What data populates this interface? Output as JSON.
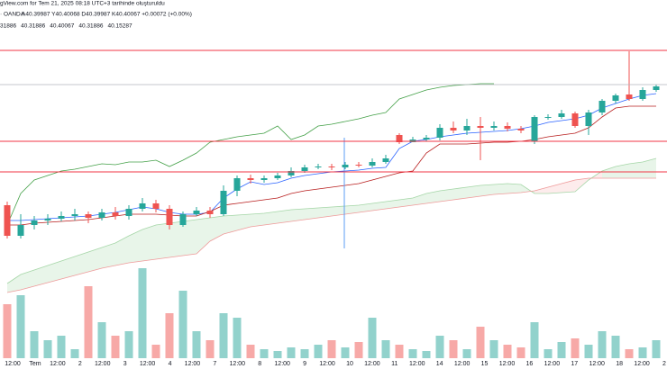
{
  "chart_data": {
    "type": "candlestick",
    "header": "gView.com for Tem 21, 2025 08:18 UTC+3 tarihinde oluşturuldu",
    "symbol": "· OANDA",
    "ohlc_text": "A40.39987 Y40.40068 D40.39987 K40.40067 +0.00072 (+0.00%)",
    "indicator_values": [
      {
        "label": "31886",
        "color": "#2962ff"
      },
      {
        "label": "40.31886",
        "color": "#f23645"
      },
      {
        "label": "40.40067",
        "color": "#43a047"
      },
      {
        "label": "40.31886",
        "color": "#a5d6a7"
      },
      {
        "label": "40.15287",
        "color": "#ef9a9a"
      }
    ],
    "ylim": [
      40.164,
      40.494
    ],
    "up_color": "#26a69a",
    "down_color": "#ef5350",
    "open": [
      40.266,
      40.232,
      40.244,
      40.249,
      40.251,
      40.254,
      40.256,
      40.252,
      40.258,
      40.254,
      40.262,
      40.268,
      40.262,
      40.244,
      40.256,
      40.26,
      40.256,
      40.282,
      40.296,
      40.294,
      40.296,
      40.299,
      40.304,
      40.308,
      40.309,
      40.308,
      40.311,
      40.31,
      40.314,
      40.344,
      40.336,
      40.339,
      40.341,
      40.352,
      40.349,
      40.354,
      40.352,
      40.354,
      40.351,
      40.337,
      40.364,
      40.364,
      40.368,
      40.354,
      40.369,
      40.382,
      40.389,
      40.384,
      40.394
    ],
    "high": [
      40.27,
      40.256,
      40.254,
      40.256,
      40.259,
      40.262,
      40.259,
      40.262,
      40.264,
      40.266,
      40.274,
      40.272,
      40.266,
      40.259,
      40.264,
      40.264,
      40.288,
      40.299,
      40.3,
      40.299,
      40.302,
      40.308,
      40.311,
      40.312,
      40.312,
      40.314,
      40.314,
      40.318,
      40.322,
      40.346,
      40.342,
      40.344,
      40.356,
      40.359,
      40.362,
      40.364,
      40.359,
      40.358,
      40.354,
      40.366,
      40.367,
      40.372,
      40.37,
      40.372,
      40.384,
      40.39,
      40.437,
      40.397,
      40.4
    ],
    "low": [
      40.229,
      40.229,
      40.239,
      40.244,
      40.248,
      40.249,
      40.246,
      40.249,
      40.25,
      40.25,
      40.259,
      40.258,
      40.239,
      40.242,
      40.254,
      40.252,
      40.254,
      40.276,
      40.29,
      40.291,
      40.294,
      40.297,
      40.302,
      40.306,
      40.305,
      40.306,
      40.308,
      40.308,
      40.312,
      40.334,
      40.336,
      40.337,
      40.338,
      40.346,
      40.344,
      40.316,
      40.349,
      40.348,
      40.346,
      40.334,
      40.361,
      40.362,
      40.352,
      40.344,
      40.366,
      40.379,
      40.382,
      40.382,
      40.392
    ],
    "close": [
      40.232,
      40.244,
      40.249,
      40.251,
      40.254,
      40.256,
      40.252,
      40.258,
      40.254,
      40.262,
      40.268,
      40.262,
      40.244,
      40.256,
      40.26,
      40.256,
      40.282,
      40.296,
      40.294,
      40.296,
      40.299,
      40.304,
      40.308,
      40.309,
      40.308,
      40.311,
      40.31,
      40.314,
      40.318,
      40.336,
      40.339,
      40.341,
      40.352,
      40.349,
      40.354,
      40.352,
      40.354,
      40.351,
      40.349,
      40.364,
      40.364,
      40.368,
      40.354,
      40.369,
      40.382,
      40.388,
      40.384,
      40.394,
      40.398
    ],
    "volume_lim": [
      0,
      100
    ],
    "volume": [
      60,
      70,
      30,
      20,
      25,
      10,
      80,
      40,
      25,
      30,
      100,
      15,
      50,
      75,
      30,
      20,
      50,
      45,
      15,
      10,
      8,
      12,
      10,
      15,
      20,
      12,
      18,
      45,
      20,
      15,
      10,
      8,
      25,
      20,
      10,
      35,
      20,
      15,
      12,
      40,
      10,
      18,
      22,
      15,
      30,
      25,
      10,
      12,
      20
    ],
    "lines": [
      {
        "color": "#2962ff",
        "values": [
          40.249,
          40.249,
          40.25,
          40.251,
          40.252,
          40.253,
          40.254,
          40.256,
          40.258,
          40.261,
          40.264,
          40.262,
          40.258,
          40.256,
          40.256,
          40.258,
          40.274,
          40.284,
          40.292,
          40.289,
          40.291,
          40.296,
          40.299,
          40.301,
          40.303,
          40.304,
          40.305,
          40.307,
          40.308,
          40.329,
          40.337,
          40.339,
          40.342,
          40.344,
          40.346,
          40.347,
          40.348,
          40.349,
          40.351,
          40.354,
          40.358,
          40.36,
          40.362,
          40.366,
          40.374,
          40.379,
          40.384,
          40.388,
          40.39
        ]
      },
      {
        "color": "#b71c1c",
        "values": [
          40.244,
          40.244,
          40.246,
          40.247,
          40.248,
          40.249,
          40.25,
          40.252,
          40.254,
          40.256,
          40.256,
          40.256,
          40.255,
          40.254,
          40.254,
          40.259,
          40.266,
          40.268,
          40.27,
          40.272,
          40.274,
          40.279,
          40.282,
          40.284,
          40.286,
          40.288,
          40.29,
          40.294,
          40.298,
          40.302,
          40.304,
          40.324,
          40.334,
          40.334,
          40.334,
          40.335,
          40.336,
          40.336,
          40.337,
          40.339,
          40.342,
          40.344,
          40.346,
          40.352,
          40.364,
          40.374,
          40.376,
          40.376,
          40.376
        ]
      },
      {
        "color": "#43a047",
        "values": [
          40.244,
          40.279,
          40.294,
          40.299,
          40.304,
          40.306,
          40.309,
          40.312,
          40.311,
          40.314,
          40.314,
          40.316,
          40.309,
          40.316,
          40.324,
          40.336,
          40.339,
          40.342,
          40.344,
          40.346,
          40.354,
          40.339,
          40.344,
          40.354,
          40.356,
          40.359,
          40.362,
          40.366,
          40.369,
          40.384,
          40.389,
          40.394,
          40.397,
          40.399,
          40.4,
          40.401,
          40.401,
          null,
          null,
          null,
          null,
          null,
          null,
          null,
          null,
          null,
          null,
          null,
          null
        ]
      }
    ],
    "cloud": {
      "span_a_color": "#a5d6a7",
      "span_b_color": "#ef9a9a",
      "up_fill": "#e8f5e9",
      "down_fill": "#fdecec",
      "span_a": [
        40.179,
        40.189,
        40.194,
        40.199,
        40.204,
        40.209,
        40.214,
        40.219,
        40.224,
        40.232,
        40.239,
        40.244,
        40.246,
        40.248,
        40.25,
        40.252,
        40.254,
        40.255,
        40.256,
        40.257,
        40.259,
        40.261,
        40.262,
        40.263,
        40.264,
        40.265,
        40.266,
        40.268,
        40.27,
        40.272,
        40.274,
        40.279,
        40.282,
        40.284,
        40.286,
        40.288,
        40.289,
        40.29,
        40.289,
        40.279,
        40.279,
        40.28,
        40.281,
        40.294,
        40.304,
        40.309,
        40.312,
        40.314,
        40.318
      ],
      "span_b": [
        40.169,
        40.172,
        40.176,
        40.18,
        40.184,
        40.188,
        40.192,
        40.196,
        40.199,
        40.202,
        40.204,
        40.206,
        40.208,
        40.21,
        40.212,
        40.226,
        40.234,
        40.238,
        40.242,
        40.244,
        40.246,
        40.248,
        40.25,
        40.252,
        40.254,
        40.256,
        40.258,
        40.26,
        40.262,
        40.264,
        40.266,
        40.268,
        40.27,
        40.272,
        40.274,
        40.276,
        40.278,
        40.279,
        40.28,
        40.282,
        40.286,
        40.29,
        40.294,
        40.296,
        40.296,
        40.296,
        40.296,
        40.296,
        40.296
      ]
    },
    "levels": [
      40.438,
      40.337,
      40.303
    ],
    "level_color": "#f23645",
    "last_price": 40.4,
    "last_price_color": "#b2b5be",
    "x_labels": [
      "12:00",
      "Tem",
      "12:00",
      "2",
      "12:00",
      "3",
      "12:00",
      "4",
      "12:00",
      "7",
      "12:00",
      "8",
      "12:00",
      "9",
      "12:00",
      "10",
      "12:00",
      "11",
      "12:00",
      "14",
      "12:00",
      "15",
      "12:00",
      "16",
      "12:00",
      "17",
      "12:00",
      "18",
      "12:00",
      "2"
    ]
  }
}
